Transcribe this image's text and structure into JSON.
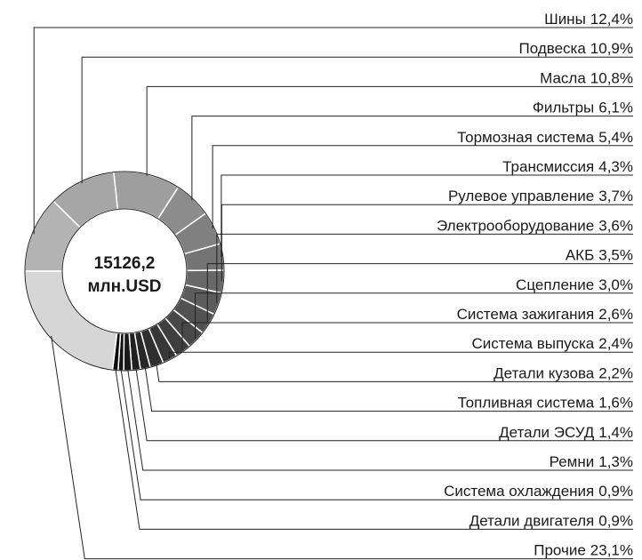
{
  "chart_data": {
    "type": "donut",
    "center_lines": [
      "15126,2",
      "млн.USD"
    ],
    "categories": [
      "Шины",
      "Подвеска",
      "Масла",
      "Фильтры",
      "Тормозная система",
      "Трансмиссия",
      "Рулевое управление",
      "Электрооборудование",
      "АКБ",
      "Сцепление",
      "Система зажигания",
      "Система выпуска",
      "Детали кузова",
      "Топливная система",
      "Детали ЭСУД",
      "Ремни",
      "Система охлаждения",
      "Детали двигателя",
      "Прочие"
    ],
    "values": [
      12.4,
      10.9,
      10.8,
      6.1,
      5.4,
      4.3,
      3.7,
      3.6,
      3.5,
      3.0,
      2.6,
      2.4,
      2.2,
      1.6,
      1.4,
      1.3,
      0.9,
      0.9,
      23.1
    ],
    "value_labels": [
      "12,4%",
      "10,9%",
      "10,8%",
      "6,1%",
      "5,4%",
      "4,3%",
      "3,7%",
      "3,6%",
      "3,5%",
      "3,0%",
      "2,6%",
      "2,4%",
      "2,2%",
      "1,6%",
      "1,4%",
      "1,3%",
      "0,9%",
      "0,9%",
      "23,1%"
    ],
    "colors": [
      "#b3b3b3",
      "#a6a6a6",
      "#9e9e9e",
      "#8c8c8c",
      "#808080",
      "#747474",
      "#686868",
      "#5c5c5c",
      "#525252",
      "#484848",
      "#3f3f3f",
      "#373737",
      "#2f2f2f",
      "#282828",
      "#202020",
      "#191919",
      "#121212",
      "#0a0a0a",
      "#d6d6d6"
    ]
  }
}
